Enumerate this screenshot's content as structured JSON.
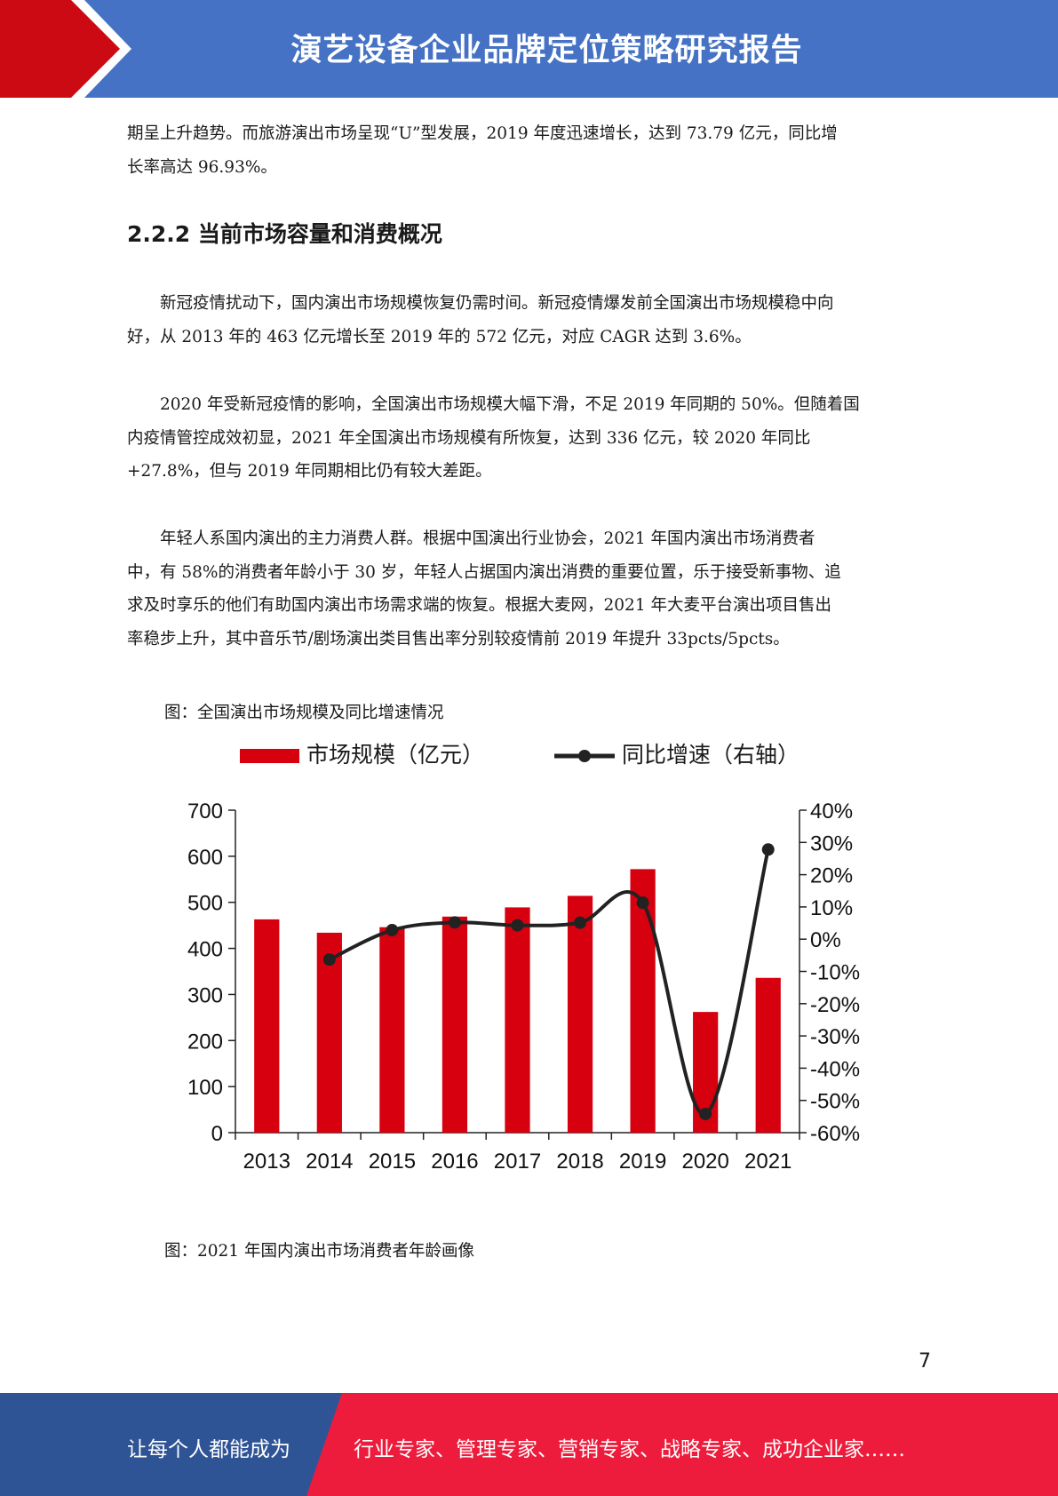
{
  "header": {
    "title": "演艺设备企业品牌定位策略研究报告",
    "colors": {
      "blue": "#4572c4",
      "red": "#cc0a14"
    }
  },
  "body": {
    "para_intro_line1": "期呈上升趋势。而旅游演出市场呈现“U”型发展，2019 年度迅速增长，达到 73.79 亿元，同比增",
    "para_intro_line2": "长率高达 96.93%。",
    "section_heading": "2.2.2 当前市场容量和消费概况",
    "para1_line1": "　　新冠疫情扰动下，国内演出市场规模恢复仍需时间。新冠疫情爆发前全国演出市场规模稳中向",
    "para1_line2": "好，从 2013 年的 463 亿元增长至 2019 年的 572 亿元，对应 CAGR 达到 3.6%。",
    "para2_line1": "　　2020 年受新冠疫情的影响，全国演出市场规模大幅下滑，不足 2019 年同期的 50%。但随着国",
    "para2_line2": "内疫情管控成效初显，2021 年全国演出市场规模有所恢复，达到 336 亿元，较 2020 年同比",
    "para2_line3": "+27.8%，但与 2019 年同期相比仍有较大差距。",
    "para3_line1": "　　年轻人系国内演出的主力消费人群。根据中国演出行业协会，2021 年国内演出市场消费者",
    "para3_line2": "中，有 58%的消费者年龄小于 30 岁，年轻人占据国内演出消费的重要位置，乐于接受新事物、追",
    "para3_line3": "求及时享乐的他们有助国内演出市场需求端的恢复。根据大麦网，2021 年大麦平台演出项目售出",
    "para3_line4": "率稳步上升，其中音乐节/剧场演出类目售出率分别较疫情前 2019 年提升 33pcts/5pcts。",
    "caption1": "图：全国演出市场规模及同比增速情况",
    "caption2": "图：2021 年国内演出市场消费者年龄画像"
  },
  "chart_data": {
    "type": "bar",
    "categories": [
      "2013",
      "2014",
      "2015",
      "2016",
      "2017",
      "2018",
      "2019",
      "2020",
      "2021"
    ],
    "series": [
      {
        "name": "市场规模（亿元）",
        "type": "bar",
        "axis": "left",
        "color": "#d7000f",
        "values": [
          463,
          434,
          446,
          469,
          489,
          514,
          572,
          262,
          336
        ]
      },
      {
        "name": "同比增速（右轴）",
        "type": "line",
        "axis": "right",
        "color": "#222222",
        "values": [
          null,
          -6.3,
          2.8,
          5.2,
          4.3,
          5.1,
          11.3,
          -54.2,
          27.8
        ]
      }
    ],
    "y_left": {
      "min": 0,
      "max": 700,
      "ticks": [
        "0",
        "100",
        "200",
        "300",
        "400",
        "500",
        "600",
        "700"
      ]
    },
    "y_right": {
      "min": -60,
      "max": 40,
      "ticks": [
        "-60%",
        "-50%",
        "-40%",
        "-30%",
        "-20%",
        "-10%",
        "0%",
        "10%",
        "20%",
        "30%",
        "40%"
      ]
    },
    "legend_position": "top",
    "grid": false
  },
  "page_number": "7",
  "footer": {
    "left_text": "让每个人都能成为",
    "right_text": "行业专家、管理专家、营销专家、战略专家、成功企业家……",
    "colors": {
      "blue": "#2f5496",
      "red": "#ee1c3c"
    }
  }
}
